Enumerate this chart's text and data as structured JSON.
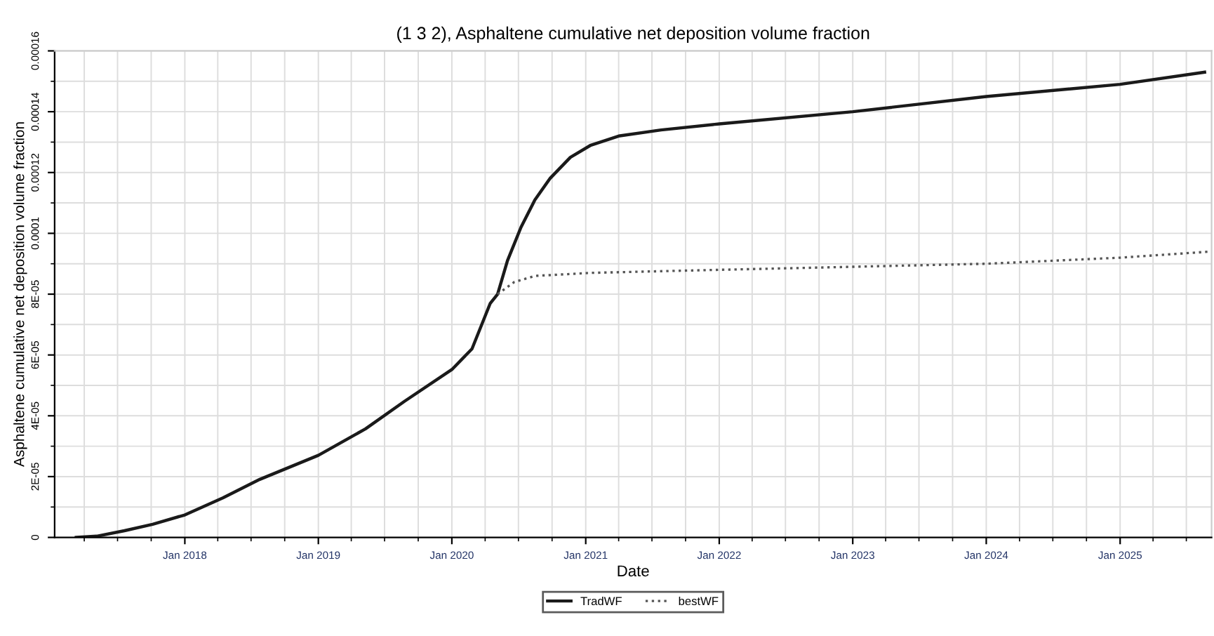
{
  "chart_data": {
    "type": "line",
    "title": "(1 3 2), Asphaltene cumulative net deposition volume fraction",
    "xlabel": "Date",
    "ylabel": "Asphaltene cumulative net deposition volume fraction",
    "x": [
      "2017-03-10",
      "2017-05-05",
      "2017-07-20",
      "2017-10-05",
      "2018-01-01",
      "2018-04-15",
      "2018-07-25",
      "2019-01-01",
      "2019-05-10",
      "2019-08-25",
      "2020-01-01",
      "2020-02-25",
      "2020-04-15",
      "2020-05-05",
      "2020-06-01",
      "2020-07-08",
      "2020-08-15",
      "2020-09-25",
      "2020-11-20",
      "2021-01-15",
      "2021-04-01",
      "2021-07-26",
      "2022-01-01",
      "2023-01-01",
      "2024-01-01",
      "2025-01-01",
      "2025-08-20"
    ],
    "series": [
      {
        "name": "TradWF",
        "color": "#1a1a1a",
        "line_style": "solid",
        "values": [
          0,
          4e-07,
          2.2e-06,
          4.3e-06,
          7.4e-06,
          1.3e-05,
          1.91e-05,
          2.7e-05,
          3.57e-05,
          4.48e-05,
          5.52e-05,
          6.2e-05,
          7.7e-05,
          8e-05,
          9.1e-05,
          0.000102,
          0.000111,
          0.000118,
          0.000125,
          0.000129,
          0.000132,
          0.000134,
          0.000136,
          0.00014,
          0.000145,
          0.000149,
          0.000153
        ]
      },
      {
        "name": "bestWF",
        "color": "#555555",
        "line_style": "dotted",
        "x": [
          "2020-05-05",
          "2020-06-20",
          "2020-08-15",
          "2021-01-15",
          "2022-01-01",
          "2023-01-01",
          "2024-01-01",
          "2025-01-01",
          "2025-09-05"
        ],
        "values": [
          8e-05,
          8.4e-05,
          8.6e-05,
          8.7e-05,
          8.8e-05,
          8.9e-05,
          9e-05,
          9.2e-05,
          9.4e-05
        ]
      }
    ],
    "xlim": [
      "2017-01-10",
      "2025-09-08"
    ],
    "xticks": [
      {
        "value": "2018-01-01",
        "label": "Jan 2018"
      },
      {
        "value": "2019-01-01",
        "label": "Jan 2019"
      },
      {
        "value": "2020-01-01",
        "label": "Jan 2020"
      },
      {
        "value": "2021-01-01",
        "label": "Jan 2021"
      },
      {
        "value": "2022-01-01",
        "label": "Jan 2022"
      },
      {
        "value": "2023-01-01",
        "label": "Jan 2023"
      },
      {
        "value": "2024-01-01",
        "label": "Jan 2024"
      },
      {
        "value": "2025-01-01",
        "label": "Jan 2025"
      }
    ],
    "ylim": [
      0,
      0.00016
    ],
    "yticks": [
      0,
      {
        "value": 2e-05,
        "label": "2E-05"
      },
      {
        "value": 4e-05,
        "label": "4E-05"
      },
      {
        "value": 6e-05,
        "label": "6E-05"
      },
      {
        "value": 8e-05,
        "label": "8E-05"
      },
      0.0001,
      0.00012,
      0.00014,
      0.00016
    ],
    "grid": true,
    "legend": "bottom",
    "marker": "none"
  }
}
